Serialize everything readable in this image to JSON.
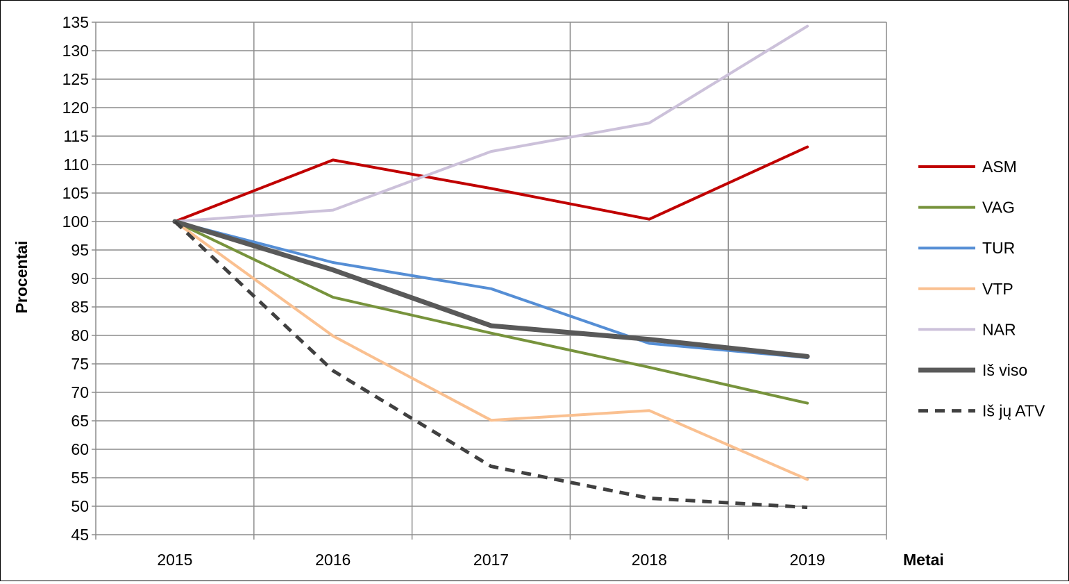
{
  "chart_data": {
    "type": "line",
    "title": "",
    "xlabel": "Metai",
    "ylabel": "Procentai",
    "categories": [
      "2015",
      "2016",
      "2017",
      "2018",
      "2019"
    ],
    "ylim": [
      45,
      135
    ],
    "ytick_step": 5,
    "grid": true,
    "legend_position": "right",
    "series": [
      {
        "name": "ASM",
        "values": [
          100,
          110.8,
          105.8,
          100.4,
          113.1
        ],
        "color": "#c00000",
        "width": 4,
        "dashed": false
      },
      {
        "name": "VAG",
        "values": [
          100,
          86.7,
          80.4,
          74.4,
          68.1
        ],
        "color": "#77933c",
        "width": 4,
        "dashed": false
      },
      {
        "name": "TUR",
        "values": [
          100,
          92.8,
          88.2,
          78.6,
          76.1
        ],
        "color": "#558ed5",
        "width": 4,
        "dashed": false
      },
      {
        "name": "VTP",
        "values": [
          100,
          79.9,
          65.1,
          66.8,
          54.7
        ],
        "color": "#fac090",
        "width": 4,
        "dashed": false
      },
      {
        "name": "NAR",
        "values": [
          100,
          102.0,
          112.3,
          117.3,
          134.3
        ],
        "color": "#ccc1da",
        "width": 4,
        "dashed": false
      },
      {
        "name": "Iš viso",
        "values": [
          100,
          91.5,
          81.7,
          79.3,
          76.3
        ],
        "color": "#595959",
        "width": 7,
        "dashed": false
      },
      {
        "name": "Iš jų ATV",
        "values": [
          100,
          73.8,
          57.0,
          51.4,
          49.8
        ],
        "color": "#404040",
        "width": 5,
        "dashed": true
      }
    ]
  }
}
